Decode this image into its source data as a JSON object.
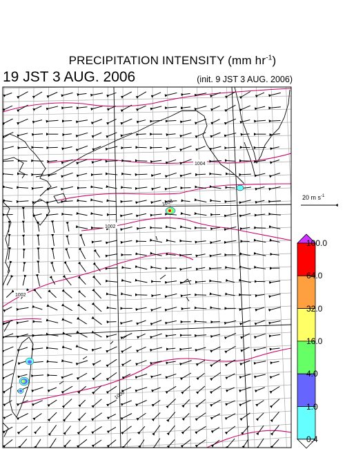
{
  "title": {
    "main": "PRECIPITATION INTENSITY (mm hr",
    "sup": "-1",
    "close": ")"
  },
  "valid_time": "19 JST 3 AUG. 2006",
  "init_time": "(init. 9 JST 3 AUG. 2006)",
  "wind_reference": {
    "label": "20 m s",
    "sup": "-1"
  },
  "colorbar": {
    "levels": [
      "100.0",
      "64.0",
      "32.0",
      "16.0",
      "4.0",
      "1.0",
      "0.4"
    ],
    "colors": [
      "#ff0000",
      "#ffa040",
      "#ffff66",
      "#66ff66",
      "#6666ff",
      "#66ffff"
    ],
    "over_color": "#cc33ff",
    "under_color": "#ffffff"
  },
  "isobars": [
    {
      "label": "1004"
    },
    {
      "label": "1002"
    },
    {
      "label": "1002"
    },
    {
      "label": "1000"
    },
    {
      "label": "1008"
    }
  ]
}
